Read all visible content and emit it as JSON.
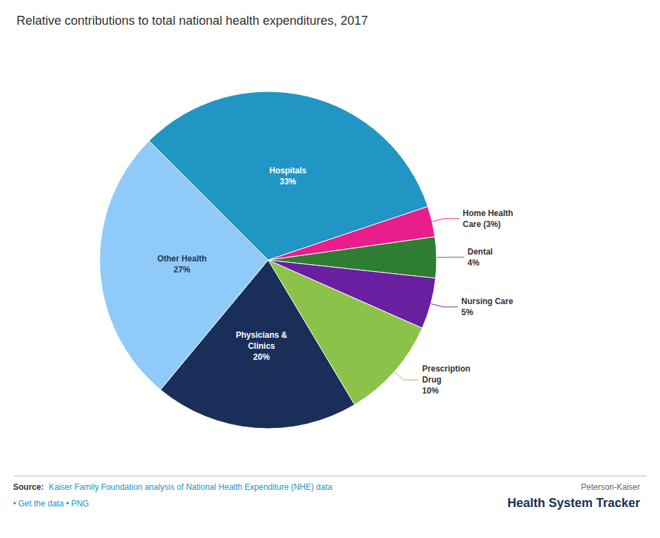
{
  "chart_data": {
    "type": "pie",
    "title": "Relative contributions to total national health expenditures, 2017",
    "categories": [
      "Hospitals\n33%",
      "Home Health\nCare (3%)",
      "Dental\n4%",
      "Nursing Care\n5%",
      "Prescription\nDrug\n10%",
      "Physicians &\nClinics\n20%",
      "Other Health\n27%"
    ],
    "values": [
      33,
      3,
      4,
      5,
      10,
      20,
      27
    ],
    "colors": [
      "#2196C4",
      "#E91E8C",
      "#2E7D32",
      "#6A1FA0",
      "#8BC34A",
      "#1A2E5A",
      "#90CAF9"
    ],
    "annotations": [
      "Source: ",
      "Kaiser Family Foundation analysis of National Health Expenditure (NHE) data",
      "• Get the data • PNG",
      "Peterson-Kaiser",
      "Health System Tracker"
    ]
  }
}
